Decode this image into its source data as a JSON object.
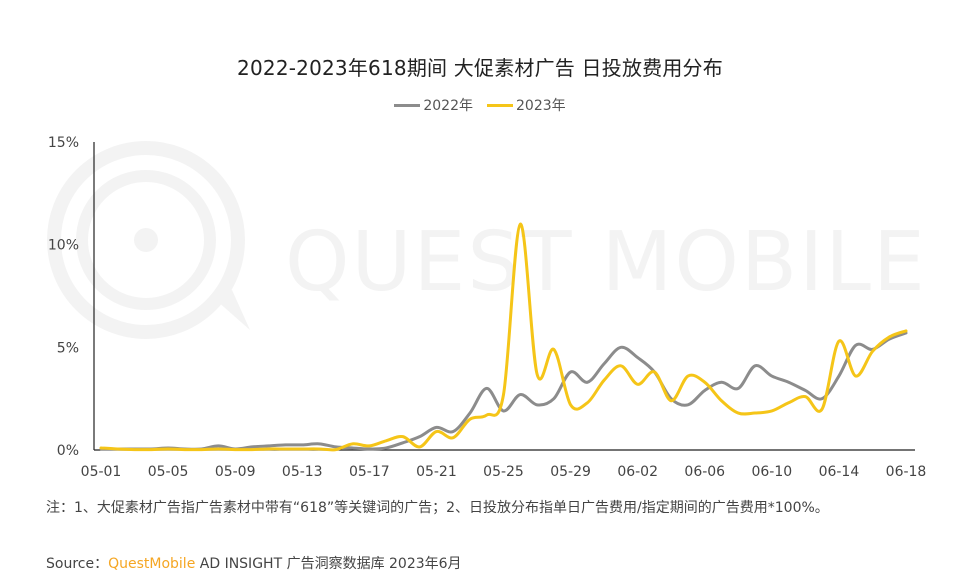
{
  "title": "2022-2023年618期间 大促素材广告 日投放费用分布",
  "legend": [
    {
      "label": "2022年",
      "color": "#8c8c8c"
    },
    {
      "label": "2023年",
      "color": "#f5c518"
    }
  ],
  "watermark": "QUEST MOBILE",
  "note": "注：1、大促素材广告指广告素材中带有“618”等关键词的广告；2、日投放分布指单日广告费用/指定期间的广告费用*100%。",
  "source": {
    "prefix": "Source：",
    "brand": "QuestMobile",
    "rest": " AD INSIGHT 广告洞察数据库 2023年6月"
  },
  "chart_data": {
    "type": "line",
    "title": "2022-2023年618期间 大促素材广告 日投放费用分布",
    "xlabel": "",
    "ylabel": "",
    "ylim": [
      0,
      15
    ],
    "yticks": [
      "0%",
      "5%",
      "10%",
      "15%"
    ],
    "xtick_labels": [
      "05-01",
      "05-05",
      "05-09",
      "05-13",
      "05-17",
      "05-21",
      "05-25",
      "05-29",
      "06-02",
      "06-06",
      "06-10",
      "06-14",
      "06-18"
    ],
    "grid": false,
    "legend_position": "top",
    "x": [
      "05-01",
      "05-02",
      "05-03",
      "05-04",
      "05-05",
      "05-06",
      "05-07",
      "05-08",
      "05-09",
      "05-10",
      "05-11",
      "05-12",
      "05-13",
      "05-14",
      "05-15",
      "05-16",
      "05-17",
      "05-18",
      "05-19",
      "05-20",
      "05-21",
      "05-22",
      "05-23",
      "05-24",
      "05-25",
      "05-26",
      "05-27",
      "05-28",
      "05-29",
      "05-30",
      "05-31",
      "06-01",
      "06-02",
      "06-03",
      "06-04",
      "06-05",
      "06-06",
      "06-07",
      "06-08",
      "06-09",
      "06-10",
      "06-11",
      "06-12",
      "06-13",
      "06-14",
      "06-15",
      "06-16",
      "06-17",
      "06-18"
    ],
    "series": [
      {
        "name": "2022年",
        "color": "#8c8c8c",
        "values": [
          0.05,
          0.05,
          0.05,
          0.05,
          0.1,
          0.05,
          0.05,
          0.2,
          0.05,
          0.15,
          0.2,
          0.25,
          0.25,
          0.3,
          0.15,
          0.1,
          0.05,
          0.1,
          0.35,
          0.65,
          1.1,
          0.9,
          1.8,
          3.0,
          1.9,
          2.7,
          2.2,
          2.5,
          3.8,
          3.3,
          4.2,
          5.0,
          4.5,
          3.8,
          2.5,
          2.2,
          2.9,
          3.3,
          3.0,
          4.1,
          3.6,
          3.3,
          2.9,
          2.5,
          3.6,
          5.1,
          4.9,
          5.4,
          5.7
        ]
      },
      {
        "name": "2023年",
        "color": "#f5c518",
        "values": [
          0.1,
          0.05,
          0.02,
          0.02,
          0.05,
          0.02,
          0.02,
          0.05,
          0.02,
          0.02,
          0.05,
          0.05,
          0.05,
          0.05,
          0.02,
          0.3,
          0.2,
          0.45,
          0.65,
          0.15,
          0.9,
          0.6,
          1.5,
          1.7,
          2.7,
          11.0,
          3.7,
          4.9,
          2.2,
          2.3,
          3.4,
          4.1,
          3.2,
          3.8,
          2.4,
          3.6,
          3.3,
          2.4,
          1.8,
          1.8,
          1.9,
          2.3,
          2.6,
          2.0,
          5.3,
          3.6,
          4.8,
          5.5,
          5.8
        ]
      }
    ]
  }
}
